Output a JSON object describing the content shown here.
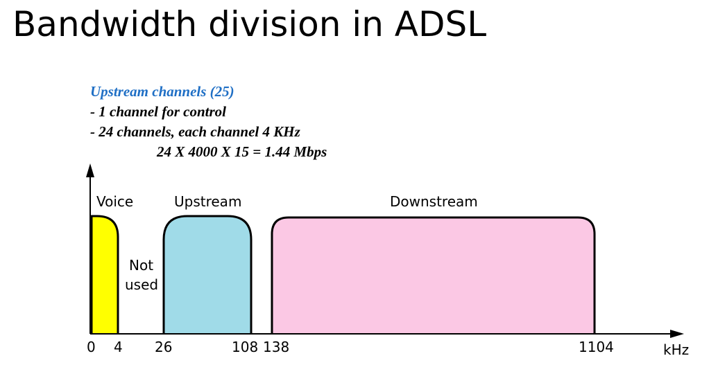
{
  "title": "Bandwidth division in ADSL",
  "notes": {
    "heading": "Upstream channels (25)",
    "line1": "- 1 channel for control",
    "line2": "- 24 channels, each channel 4 KHz",
    "formula": "24 X 4000 X 15 = 1.44 Mbps"
  },
  "diagram": {
    "band_labels": {
      "voice": "Voice",
      "not_used_top": "Not",
      "not_used_bottom": "used",
      "upstream": "Upstream",
      "downstream": "Downstream"
    },
    "ticks": [
      "0",
      "4",
      "26",
      "108",
      "138",
      "1104"
    ],
    "axis_unit": "kHz",
    "colors": {
      "voice": "#ffff00",
      "upstream": "#a0dbe8",
      "downstream": "#fbc8e4",
      "outline": "#000000",
      "heading": "#1f6fc5"
    }
  }
}
